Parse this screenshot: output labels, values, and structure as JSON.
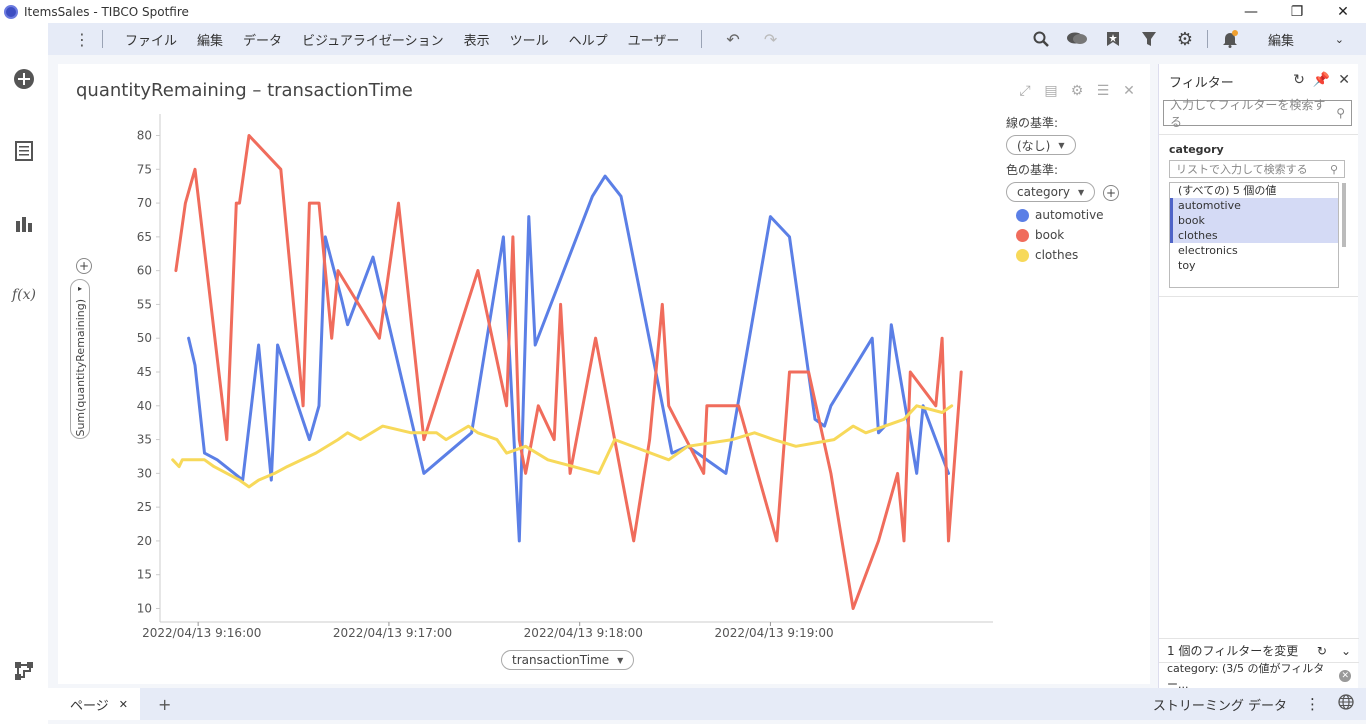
{
  "window": {
    "title": "ItemsSales - TIBCO Spotfire"
  },
  "menubar": {
    "items": [
      "ファイル",
      "編集",
      "データ",
      "ビジュアライゼーション",
      "表示",
      "ツール",
      "ヘルプ",
      "ユーザー"
    ],
    "mode": "編集"
  },
  "visualization": {
    "title": "quantityRemaining – transactionTime",
    "y_axis_label": "Sum(quantityRemaining)",
    "x_axis_label": "transactionTime",
    "line_by_label": "線の基準:",
    "line_by_value": "(なし)",
    "color_by_label": "色の基準:",
    "color_by_value": "category"
  },
  "legend": [
    {
      "name": "automotive",
      "color": "#5b7fe6"
    },
    {
      "name": "book",
      "color": "#f06c5c"
    },
    {
      "name": "clothes",
      "color": "#f7d95a"
    }
  ],
  "filter": {
    "title": "フィルター",
    "search_placeholder": "入力してフィルターを検索する",
    "category_title": "category",
    "list_search_placeholder": "リストで入力して検索する",
    "values": [
      {
        "label": "(すべての) 5 個の値",
        "selected": false
      },
      {
        "label": "automotive",
        "selected": true
      },
      {
        "label": "book",
        "selected": true
      },
      {
        "label": "clothes",
        "selected": true
      },
      {
        "label": "electronics",
        "selected": false
      },
      {
        "label": "toy",
        "selected": false
      }
    ],
    "footer_changed": "1 個のフィルターを変更",
    "footer_summary": "category: (3/5 の値がフィルター..."
  },
  "bottombar": {
    "page_tab": "ページ",
    "streaming": "ストリーミング データ"
  },
  "chart_data": {
    "type": "line",
    "x_axis": "transactionTime",
    "y_axis": "Sum(quantityRemaining)",
    "x_ticks": [
      "2022/04/13 9:16:00",
      "2022/04/13 9:17:00",
      "2022/04/13 9:18:00",
      "2022/04/13 9:19:00"
    ],
    "x_unit": "seconds after 2022/04/13 9:16:00",
    "xlim": [
      -12,
      250
    ],
    "ylim": [
      8,
      82
    ],
    "y_ticks": [
      10,
      15,
      20,
      25,
      30,
      35,
      40,
      45,
      50,
      55,
      60,
      65,
      70,
      75,
      80
    ],
    "grid": false,
    "legend_position": "right",
    "series": [
      {
        "name": "automotive",
        "color": "#5b7fe6",
        "x": [
          -3,
          -1,
          2,
          6,
          14,
          19,
          23,
          25,
          35,
          38,
          40,
          45,
          47,
          55,
          71,
          76,
          86,
          96,
          101,
          104,
          106,
          124,
          128,
          133,
          149,
          154,
          166,
          180,
          186,
          194,
          197,
          199,
          212,
          214,
          216,
          218,
          226,
          228,
          236
        ],
        "y": [
          50,
          46,
          33,
          32,
          29,
          49,
          29,
          49,
          35,
          40,
          65,
          56,
          52,
          62,
          30,
          32,
          36,
          65,
          20,
          68,
          49,
          71,
          74,
          71,
          33,
          34,
          30,
          68,
          65,
          38,
          37,
          40,
          50,
          36,
          37,
          52,
          30,
          40,
          30
        ]
      },
      {
        "name": "book",
        "color": "#f06c5c",
        "x": [
          -7,
          -4,
          -1,
          9,
          12,
          13,
          16,
          26,
          33,
          35,
          38,
          42,
          44,
          57,
          63,
          71,
          88,
          97,
          99,
          101,
          103,
          107,
          112,
          114,
          117,
          125,
          137,
          142,
          146,
          148,
          159,
          160,
          170,
          182,
          186,
          192,
          199,
          206,
          214,
          220,
          222,
          224,
          232,
          234,
          236,
          240
        ],
        "y": [
          60,
          70,
          75,
          35,
          70,
          70,
          80,
          75,
          40,
          70,
          70,
          50,
          60,
          50,
          70,
          35,
          60,
          40,
          65,
          35,
          30,
          40,
          35,
          55,
          30,
          50,
          20,
          35,
          55,
          40,
          30,
          40,
          40,
          20,
          45,
          45,
          30,
          10,
          20,
          30,
          20,
          45,
          40,
          50,
          20,
          45
        ]
      },
      {
        "name": "clothes",
        "color": "#f7d95a",
        "x": [
          -8,
          -6,
          -5,
          -2,
          2,
          5,
          13,
          16,
          19,
          24,
          28,
          37,
          44,
          47,
          51,
          58,
          67,
          75,
          78,
          85,
          88,
          94,
          97,
          103,
          110,
          118,
          126,
          131,
          148,
          154,
          168,
          175,
          181,
          188,
          200,
          203,
          206,
          210,
          222,
          226,
          234,
          237
        ],
        "y": [
          32,
          31,
          32,
          32,
          32,
          31,
          29,
          28,
          29,
          30,
          31,
          33,
          35,
          36,
          35,
          37,
          36,
          36,
          35,
          37,
          36,
          35,
          33,
          34,
          32,
          31,
          30,
          35,
          32,
          34,
          35,
          36,
          35,
          34,
          35,
          36,
          37,
          36,
          38,
          40,
          39,
          40
        ]
      }
    ]
  }
}
